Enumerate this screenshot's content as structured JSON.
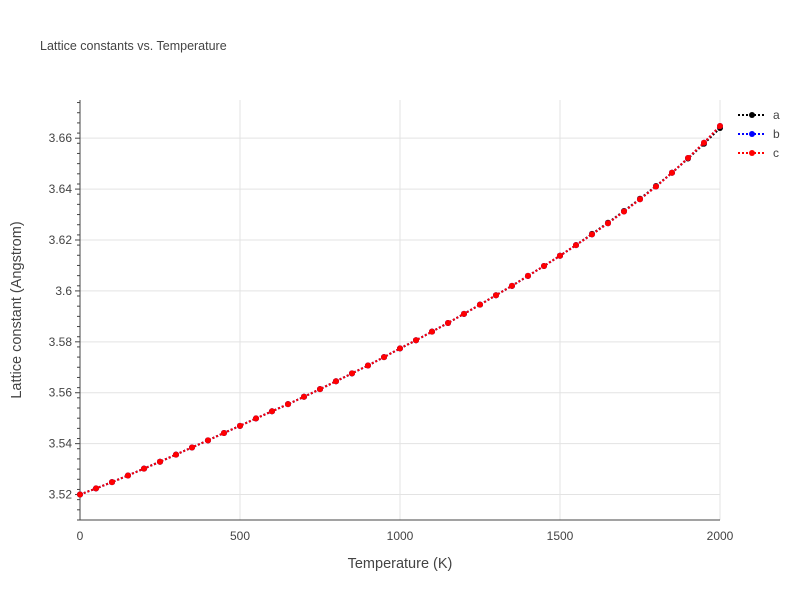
{
  "chart_data": {
    "type": "line",
    "title": "Lattice constants vs. Temperature",
    "xlabel": "Temperature (K)",
    "ylabel": "Lattice constant (Angstrom)",
    "xlim": [
      0,
      2000
    ],
    "ylim": [
      3.51,
      3.675
    ],
    "xticks": [
      0,
      500,
      1000,
      1500,
      2000
    ],
    "xtick_labels": [
      "0",
      "500",
      "1000",
      "1500",
      "2000"
    ],
    "yticks": [
      3.52,
      3.54,
      3.56,
      3.58,
      3.6,
      3.62,
      3.64,
      3.66
    ],
    "ytick_labels": [
      "3.52",
      "3.54",
      "3.56",
      "3.58",
      "3.6",
      "3.62",
      "3.64",
      "3.66"
    ],
    "grid": true,
    "legend_position": "top-right",
    "x": [
      0,
      50,
      100,
      150,
      200,
      250,
      300,
      350,
      400,
      450,
      500,
      550,
      600,
      650,
      700,
      750,
      800,
      850,
      900,
      950,
      1000,
      1050,
      1100,
      1150,
      1200,
      1250,
      1300,
      1350,
      1400,
      1450,
      1500,
      1550,
      1600,
      1650,
      1700,
      1750,
      1800,
      1850,
      1900,
      1950,
      2000
    ],
    "series": [
      {
        "name": "a",
        "color": "#000000",
        "values": [
          3.52,
          3.5224,
          3.5249,
          3.5275,
          3.5302,
          3.5329,
          3.5357,
          3.5385,
          3.5413,
          3.5442,
          3.547,
          3.5499,
          3.5527,
          3.5555,
          3.5584,
          3.5614,
          3.5645,
          3.5676,
          3.5707,
          3.574,
          3.5774,
          3.5806,
          3.584,
          3.5874,
          3.591,
          3.5946,
          3.5983,
          3.602,
          3.6059,
          3.6098,
          3.6138,
          3.618,
          3.6224,
          3.6268,
          3.6314,
          3.6362,
          3.6412,
          3.6464,
          3.652,
          3.6578,
          3.664
        ]
      },
      {
        "name": "b",
        "color": "#0000ff",
        "values": [
          3.52,
          3.5224,
          3.5249,
          3.5275,
          3.5302,
          3.5329,
          3.5357,
          3.5385,
          3.5413,
          3.5442,
          3.547,
          3.5499,
          3.5527,
          3.5555,
          3.5584,
          3.5614,
          3.5645,
          3.5676,
          3.5707,
          3.574,
          3.5774,
          3.5806,
          3.584,
          3.5874,
          3.591,
          3.5946,
          3.5983,
          3.602,
          3.6059,
          3.6098,
          3.6138,
          3.618,
          3.6222,
          3.6266,
          3.6312,
          3.636,
          3.641,
          3.6464,
          3.6522,
          3.6582,
          3.6648
        ]
      },
      {
        "name": "c",
        "color": "#ff0000",
        "values": [
          3.52,
          3.5224,
          3.5249,
          3.5275,
          3.5302,
          3.5329,
          3.5357,
          3.5385,
          3.5413,
          3.5442,
          3.547,
          3.5499,
          3.5527,
          3.5555,
          3.5584,
          3.5614,
          3.5645,
          3.5676,
          3.5707,
          3.574,
          3.5774,
          3.5806,
          3.584,
          3.5874,
          3.591,
          3.5946,
          3.5983,
          3.602,
          3.6059,
          3.6098,
          3.6138,
          3.618,
          3.6222,
          3.6266,
          3.6312,
          3.636,
          3.641,
          3.6464,
          3.6522,
          3.6582,
          3.6648
        ]
      }
    ]
  }
}
